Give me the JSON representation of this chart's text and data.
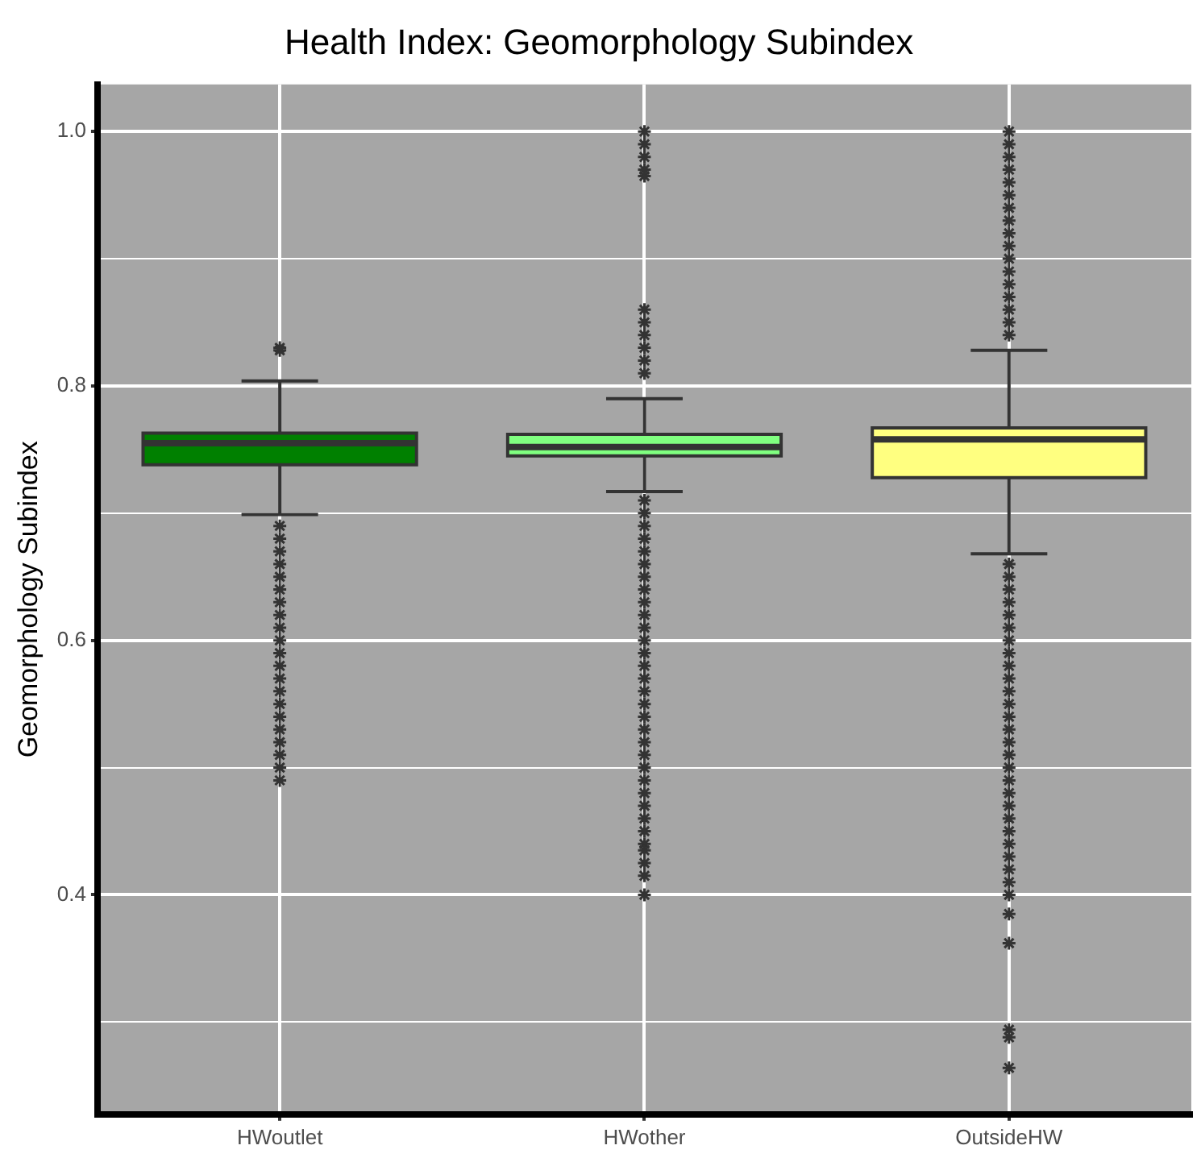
{
  "chart_data": {
    "type": "box",
    "title": "Health Index: Geomorphology Subindex",
    "ylabel": "Geomorphology Subindex",
    "categories": [
      "HWoutlet",
      "HWother",
      "OutsideHW"
    ],
    "colors": [
      "#008000",
      "#80ff80",
      "#ffff80"
    ],
    "boxes": [
      {
        "low": 0.699,
        "q1": 0.738,
        "median": 0.755,
        "q3": 0.763,
        "high": 0.804,
        "outliers": [
          0.83,
          0.828,
          0.69,
          0.68,
          0.67,
          0.66,
          0.65,
          0.64,
          0.63,
          0.62,
          0.61,
          0.6,
          0.59,
          0.58,
          0.57,
          0.56,
          0.55,
          0.54,
          0.53,
          0.52,
          0.51,
          0.5,
          0.49
        ]
      },
      {
        "low": 0.717,
        "q1": 0.745,
        "median": 0.752,
        "q3": 0.762,
        "high": 0.79,
        "outliers": [
          0.81,
          0.82,
          0.83,
          0.84,
          0.85,
          0.86,
          0.965,
          0.97,
          0.98,
          0.99,
          1.0,
          0.71,
          0.7,
          0.69,
          0.68,
          0.67,
          0.66,
          0.65,
          0.64,
          0.63,
          0.62,
          0.61,
          0.6,
          0.59,
          0.58,
          0.57,
          0.56,
          0.55,
          0.54,
          0.53,
          0.52,
          0.51,
          0.5,
          0.49,
          0.48,
          0.47,
          0.46,
          0.45,
          0.44,
          0.435,
          0.425,
          0.415,
          0.4
        ]
      },
      {
        "low": 0.668,
        "q1": 0.728,
        "median": 0.758,
        "q3": 0.767,
        "high": 0.828,
        "outliers": [
          0.84,
          0.85,
          0.86,
          0.87,
          0.88,
          0.89,
          0.9,
          0.91,
          0.92,
          0.93,
          0.94,
          0.95,
          0.96,
          0.97,
          0.98,
          0.99,
          1.0,
          0.66,
          0.65,
          0.64,
          0.63,
          0.62,
          0.61,
          0.6,
          0.59,
          0.58,
          0.57,
          0.56,
          0.55,
          0.54,
          0.53,
          0.52,
          0.51,
          0.5,
          0.49,
          0.48,
          0.47,
          0.46,
          0.45,
          0.44,
          0.43,
          0.42,
          0.41,
          0.4,
          0.385,
          0.362,
          0.294,
          0.288,
          0.264
        ]
      }
    ],
    "ylim": [
      0.2275,
      1.037
    ],
    "yticks": [
      {
        "value": 0.3,
        "label": null
      },
      {
        "value": 0.4,
        "label": "0.4"
      },
      {
        "value": 0.5,
        "label": null
      },
      {
        "value": 0.6,
        "label": "0.6"
      },
      {
        "value": 0.7,
        "label": null
      },
      {
        "value": 0.8,
        "label": "0.8"
      },
      {
        "value": 0.9,
        "label": null
      },
      {
        "value": 1,
        "label": "1.0"
      }
    ],
    "grid": true,
    "legend": false,
    "marker": "star"
  }
}
